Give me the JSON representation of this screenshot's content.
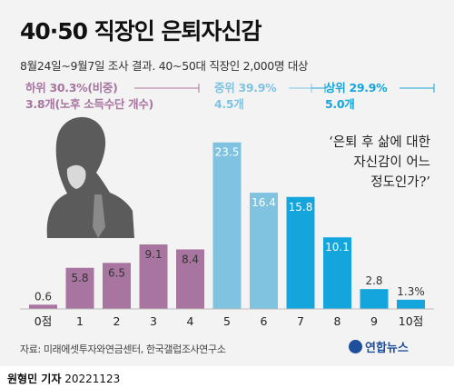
{
  "title": "40·50 직장인 은퇴자신감",
  "subtitle": "8월24일~9월7일 조사 결과. 40~50대 직장인 2,000명 대상",
  "groups": {
    "low": {
      "label": "하위 30.3%(비중)",
      "sub": "3.8개(노후 소득수단 개수)"
    },
    "mid": {
      "label": "중위 39.9%",
      "sub": "4.5개"
    },
    "high": {
      "label": "상위 29.9%",
      "sub": "5.0개"
    }
  },
  "question": {
    "line1": "‘은퇴 후 삶에 대한",
    "line2": "자신감이 어느",
    "line3": "정도인가?’"
  },
  "source": "자료: 미래에셋투자와연금센터, 한국갤럽조사연구소",
  "logo": "연합뉴스",
  "credit_author": "원형민 기자",
  "credit_date": "20221123",
  "colors": {
    "low": "#a7759f",
    "mid": "#7fc3e0",
    "high": "#14a5dc"
  },
  "chart_data": {
    "type": "bar",
    "categories": [
      "0점",
      "1",
      "2",
      "3",
      "4",
      "5",
      "6",
      "7",
      "8",
      "9",
      "10점"
    ],
    "values": [
      0.6,
      5.8,
      6.5,
      9.1,
      8.4,
      23.5,
      16.4,
      15.8,
      10.1,
      2.8,
      1.3
    ],
    "value_labels": [
      "0.6",
      "5.8",
      "6.5",
      "9.1",
      "8.4",
      "23.5",
      "16.4",
      "15.8",
      "10.1",
      "2.8",
      "1.3%"
    ],
    "groups": [
      "low",
      "low",
      "low",
      "low",
      "low",
      "mid",
      "mid",
      "high",
      "high",
      "high",
      "high"
    ],
    "ylim": [
      0,
      25
    ]
  }
}
